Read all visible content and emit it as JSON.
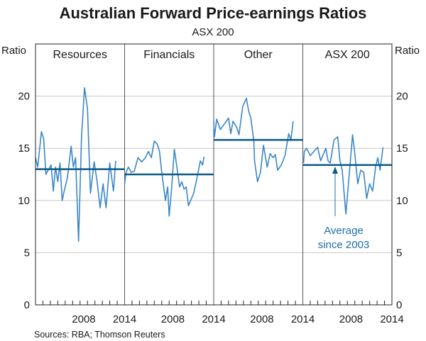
{
  "chart_data": {
    "type": "line",
    "title": "Australian Forward Price-earnings Ratios",
    "subtitle": "ASX 200",
    "ylabel_left": "Ratio",
    "ylabel_right": "Ratio",
    "ylim": [
      0,
      25
    ],
    "yticks": [
      0,
      5,
      10,
      15,
      20
    ],
    "xlim": [
      2002,
      2014
    ],
    "xtick_labels": [
      "2008",
      "2014"
    ],
    "grid": true,
    "source": "Sources: RBA; Thomson Reuters",
    "annotation": {
      "text_line1": "Average",
      "text_line2": "since 2003",
      "panel": "ASX 200"
    },
    "colors": {
      "series": "#3a87c8",
      "average": "#0d5a86",
      "grid": "#c8c8c8"
    },
    "panels": [
      {
        "name": "Resources",
        "average": 13.0,
        "x": [
          2002.0,
          2002.3,
          2002.8,
          2003.1,
          2003.4,
          2003.7,
          2004.1,
          2004.4,
          2004.7,
          2005.0,
          2005.3,
          2005.6,
          2005.8,
          2006.3,
          2006.8,
          2007.1,
          2007.4,
          2007.8,
          2008.2,
          2008.6,
          2009.0,
          2009.4,
          2009.9,
          2010.3,
          2010.7,
          2011.1,
          2011.5,
          2012.0,
          2012.5,
          2012.8
        ],
        "y": [
          14.1,
          13.2,
          16.6,
          15.9,
          12.5,
          12.9,
          13.4,
          10.9,
          13.2,
          11.8,
          13.6,
          10.0,
          10.7,
          12.2,
          15.2,
          13.2,
          14.1,
          6.1,
          16.1,
          20.8,
          18.8,
          10.7,
          13.7,
          11.8,
          9.3,
          11.6,
          9.3,
          13.6,
          10.9,
          13.8
        ]
      },
      {
        "name": "Financials",
        "average": 12.5,
        "x": [
          2002.0,
          2002.2,
          2002.5,
          2002.9,
          2003.3,
          2003.8,
          2004.3,
          2004.8,
          2005.2,
          2005.6,
          2006.0,
          2006.4,
          2006.7,
          2007.0,
          2007.3,
          2007.5,
          2007.8,
          2008.0,
          2008.3,
          2008.7,
          2009.0,
          2009.4,
          2009.7,
          2010.0,
          2010.3,
          2010.6,
          2011.3,
          2011.7,
          2012.2,
          2012.5,
          2012.7
        ],
        "y": [
          11.6,
          12.7,
          13.2,
          12.7,
          12.8,
          14.1,
          13.7,
          14.1,
          14.7,
          14.1,
          15.7,
          15.4,
          14.7,
          12.7,
          11.1,
          10.0,
          11.3,
          8.5,
          10.9,
          14.9,
          13.4,
          11.3,
          11.8,
          11.1,
          11.3,
          9.5,
          10.7,
          12.0,
          13.8,
          13.4,
          14.2
        ]
      },
      {
        "name": "Other",
        "average": 15.8,
        "x": [
          2002.0,
          2002.1,
          2002.4,
          2002.9,
          2003.3,
          2004.0,
          2004.3,
          2004.6,
          2005.1,
          2005.4,
          2005.9,
          2006.4,
          2006.7,
          2007.0,
          2007.4,
          2007.5,
          2007.9,
          2008.3,
          2008.7,
          2009.2,
          2009.6,
          2010.0,
          2010.3,
          2010.6,
          2011.1,
          2011.6,
          2012.1,
          2012.4,
          2012.7
        ],
        "y": [
          17.6,
          16.1,
          17.8,
          16.8,
          17.2,
          17.9,
          16.4,
          17.6,
          17.0,
          16.3,
          19.0,
          19.8,
          18.6,
          17.9,
          15.7,
          13.8,
          11.8,
          12.7,
          15.3,
          13.2,
          14.5,
          14.1,
          14.4,
          12.9,
          13.4,
          14.3,
          16.4,
          15.8,
          17.6
        ]
      },
      {
        "name": "ASX 200",
        "average": 13.4,
        "x": [
          2002.1,
          2002.2,
          2002.5,
          2003.0,
          2003.5,
          2004.0,
          2004.4,
          2005.1,
          2005.4,
          2005.7,
          2006.2,
          2006.7,
          2007.0,
          2007.3,
          2007.8,
          2008.3,
          2008.7,
          2009.0,
          2009.4,
          2009.8,
          2010.2,
          2010.6,
          2011.0,
          2011.4,
          2011.8,
          2012.1,
          2012.4,
          2012.8
        ],
        "y": [
          13.6,
          14.7,
          15.0,
          14.3,
          14.7,
          15.1,
          13.8,
          15.0,
          13.8,
          13.6,
          15.8,
          16.1,
          13.8,
          12.9,
          8.7,
          12.9,
          16.3,
          14.5,
          11.6,
          12.9,
          12.7,
          10.2,
          11.6,
          10.9,
          13.2,
          14.1,
          12.9,
          15.1
        ]
      }
    ]
  }
}
